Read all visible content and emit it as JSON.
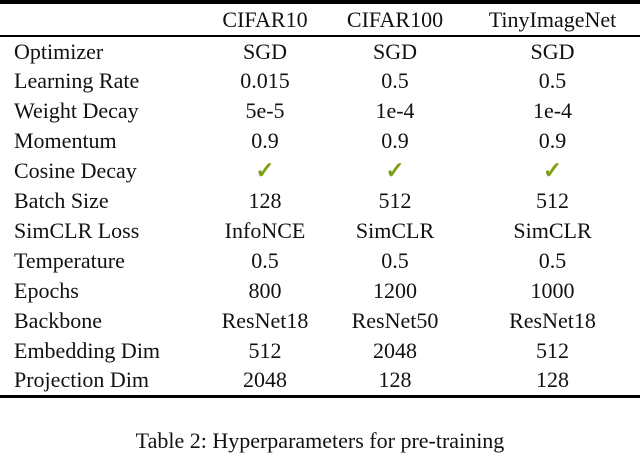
{
  "table": {
    "columns": [
      "CIFAR10",
      "CIFAR100",
      "TinyImageNet"
    ],
    "rows": [
      {
        "label": "Optimizer",
        "values": [
          "SGD",
          "SGD",
          "SGD"
        ]
      },
      {
        "label": "Learning Rate",
        "values": [
          "0.015",
          "0.5",
          "0.5"
        ]
      },
      {
        "label": "Weight Decay",
        "values": [
          "5e-5",
          "1e-4",
          "1e-4"
        ]
      },
      {
        "label": "Momentum",
        "values": [
          "0.9",
          "0.9",
          "0.9"
        ]
      },
      {
        "label": "Cosine Decay",
        "values": [
          "✓",
          "✓",
          "✓"
        ]
      },
      {
        "label": "Batch Size",
        "values": [
          "128",
          "512",
          "512"
        ]
      },
      {
        "label": "SimCLR Loss",
        "values": [
          "InfoNCE",
          "SimCLR",
          "SimCLR"
        ]
      },
      {
        "label": "Temperature",
        "values": [
          "0.5",
          "0.5",
          "0.5"
        ]
      },
      {
        "label": "Epochs",
        "values": [
          "800",
          "1200",
          "1000"
        ]
      },
      {
        "label": "Backbone",
        "values": [
          "ResNet18",
          "ResNet50",
          "ResNet18"
        ]
      },
      {
        "label": "Embedding Dim",
        "values": [
          "512",
          "2048",
          "512"
        ]
      },
      {
        "label": "Projection Dim",
        "values": [
          "2048",
          "128",
          "128"
        ]
      }
    ],
    "checkmark_glyph": "✓",
    "checkmark_color": "#7da014",
    "rule_color": "#000000"
  },
  "caption": {
    "text": "Table 2: Hyperparameters for pre-training"
  }
}
